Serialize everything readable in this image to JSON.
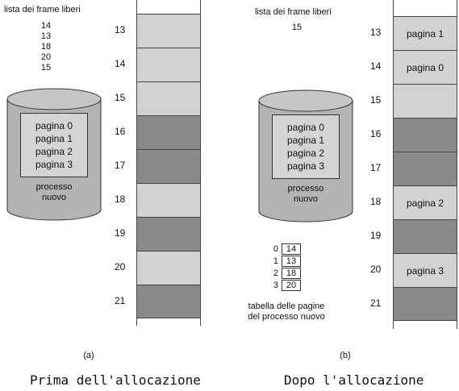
{
  "left": {
    "free_list_title": "lista dei frame liberi",
    "free_frames": [
      "14",
      "13",
      "18",
      "20",
      "15"
    ],
    "process_pages": [
      "pagina 0",
      "pagina 1",
      "pagina 2",
      "pagina 3"
    ],
    "process_label": "processo nuovo",
    "frames": [
      {
        "num": "13",
        "state": "free",
        "label": ""
      },
      {
        "num": "14",
        "state": "free",
        "label": ""
      },
      {
        "num": "15",
        "state": "free",
        "label": ""
      },
      {
        "num": "16",
        "state": "used",
        "label": ""
      },
      {
        "num": "17",
        "state": "used",
        "label": ""
      },
      {
        "num": "18",
        "state": "free",
        "label": ""
      },
      {
        "num": "19",
        "state": "used",
        "label": ""
      },
      {
        "num": "20",
        "state": "free",
        "label": ""
      },
      {
        "num": "21",
        "state": "used",
        "label": ""
      }
    ],
    "sub_caption": "(a)",
    "caption": "Prima dell'allocazione"
  },
  "right": {
    "free_list_title": "lista dei frame liberi",
    "free_frames": [
      "15"
    ],
    "process_pages": [
      "pagina 0",
      "pagina 1",
      "pagina 2",
      "pagina 3"
    ],
    "process_label": "processo nuovo",
    "frames": [
      {
        "num": "13",
        "state": "new",
        "label": "pagina 1"
      },
      {
        "num": "14",
        "state": "new",
        "label": "pagina 0"
      },
      {
        "num": "15",
        "state": "free",
        "label": ""
      },
      {
        "num": "16",
        "state": "used",
        "label": ""
      },
      {
        "num": "17",
        "state": "used",
        "label": ""
      },
      {
        "num": "18",
        "state": "new",
        "label": "pagina 2"
      },
      {
        "num": "19",
        "state": "used",
        "label": ""
      },
      {
        "num": "20",
        "state": "new",
        "label": "pagina 3"
      },
      {
        "num": "21",
        "state": "used",
        "label": ""
      }
    ],
    "page_table": [
      {
        "page": "0",
        "frame": "14"
      },
      {
        "page": "1",
        "frame": "13"
      },
      {
        "page": "2",
        "frame": "18"
      },
      {
        "page": "3",
        "frame": "20"
      }
    ],
    "page_table_label": "tabella delle pagine del processo nuovo",
    "sub_caption": "(b)",
    "caption": "Dopo l'allocazione"
  },
  "colors": {
    "free_frame": "#d2d2d2",
    "used_frame": "#8a8a8a",
    "cylinder": "#b3b3b3"
  }
}
